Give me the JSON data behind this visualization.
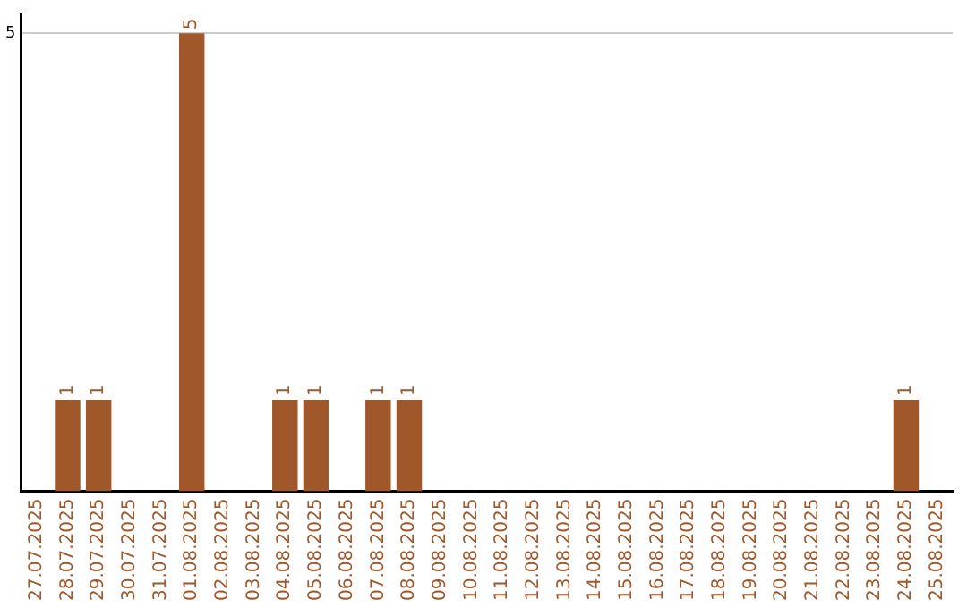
{
  "chart_data": {
    "type": "bar",
    "categories": [
      "27.07.2025",
      "28.07.2025",
      "29.07.2025",
      "30.07.2025",
      "31.07.2025",
      "01.08.2025",
      "02.08.2025",
      "03.08.2025",
      "04.08.2025",
      "05.08.2025",
      "06.08.2025",
      "07.08.2025",
      "08.08.2025",
      "09.08.2025",
      "10.08.2025",
      "11.08.2025",
      "12.08.2025",
      "13.08.2025",
      "14.08.2025",
      "15.08.2025",
      "16.08.2025",
      "17.08.2025",
      "18.08.2025",
      "19.08.2025",
      "20.08.2025",
      "21.08.2025",
      "22.08.2025",
      "23.08.2025",
      "24.08.2025",
      "25.08.2025"
    ],
    "values": [
      0,
      1,
      1,
      0,
      0,
      5,
      0,
      0,
      1,
      1,
      0,
      1,
      1,
      0,
      0,
      0,
      0,
      0,
      0,
      0,
      0,
      0,
      0,
      0,
      0,
      0,
      0,
      0,
      1,
      0
    ],
    "value_labels": [
      null,
      "1",
      "1",
      null,
      null,
      "5",
      null,
      null,
      "1",
      "1",
      null,
      "1",
      "1",
      null,
      null,
      null,
      null,
      null,
      null,
      null,
      null,
      null,
      null,
      null,
      null,
      null,
      null,
      null,
      "1",
      null
    ],
    "color": "#a0572a",
    "ylim": [
      0,
      5.2
    ],
    "yticks": [
      5
    ],
    "grid": "y",
    "legend": false
  }
}
